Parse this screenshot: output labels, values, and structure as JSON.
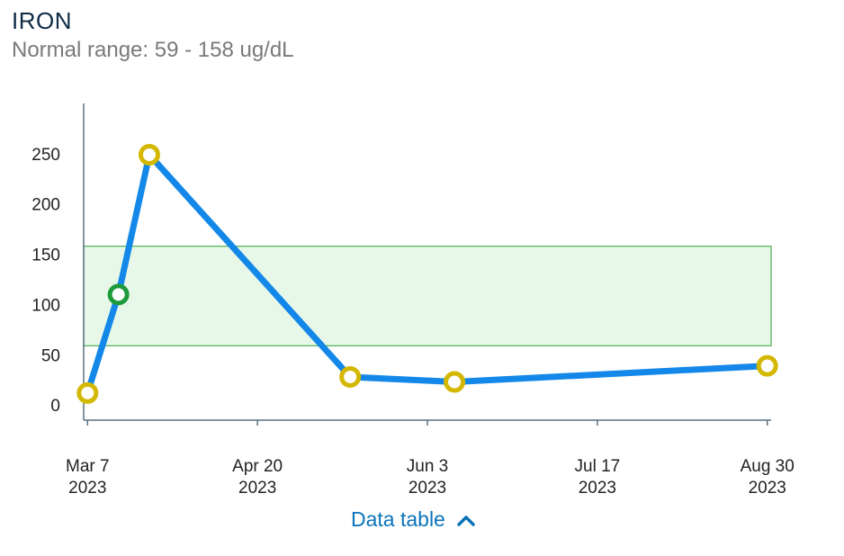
{
  "header": {
    "title": "IRON",
    "subtitle": "Normal range: 59 - 158 ug/dL"
  },
  "chart_data": {
    "type": "line",
    "ylim": [
      -15,
      300
    ],
    "yticks": [
      0,
      50,
      100,
      150,
      200,
      250
    ],
    "xlim": [
      "2023-03-06",
      "2023-08-31"
    ],
    "xticks": [
      {
        "date": "2023-03-07",
        "line1": "Mar 7",
        "line2": "2023"
      },
      {
        "date": "2023-04-20",
        "line1": "Apr 20",
        "line2": "2023"
      },
      {
        "date": "2023-06-03",
        "line1": "Jun 3",
        "line2": "2023"
      },
      {
        "date": "2023-07-17",
        "line1": "Jul 17",
        "line2": "2023"
      },
      {
        "date": "2023-08-30",
        "line1": "Aug 30",
        "line2": "2023"
      }
    ],
    "normal_range": [
      59,
      158
    ],
    "series": [
      {
        "points": [
          {
            "x": "2023-03-07",
            "y": 12
          },
          {
            "x": "2023-03-15",
            "y": 110
          },
          {
            "x": "2023-03-23",
            "y": 249
          },
          {
            "x": "2023-05-14",
            "y": 28
          },
          {
            "x": "2023-06-10",
            "y": 23
          },
          {
            "x": "2023-08-30",
            "y": 39
          }
        ]
      }
    ],
    "colors": {
      "line": "#1488e8",
      "abnormal_marker": "#d4b800",
      "normal_marker": "#1d9a3a",
      "range_fill": "#e8f8e8",
      "range_stroke": "#4caf50",
      "axis": "#5a7080"
    }
  },
  "footer": {
    "data_table_label": "Data table"
  }
}
